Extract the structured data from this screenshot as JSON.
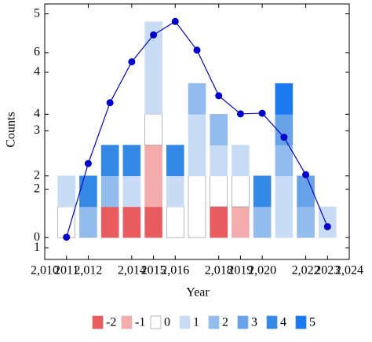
{
  "chart_data": {
    "type": "bar",
    "xlabel": "Year",
    "ylabel": "Counts",
    "x": [
      2011,
      2012,
      2013,
      2014,
      2015,
      2016,
      2017,
      2018,
      2019,
      2020,
      2021,
      2022,
      2023
    ],
    "xlim": [
      2010,
      2024
    ],
    "xticks": [
      {
        "value": 2010,
        "label": "2,010"
      },
      {
        "value": 2012,
        "label": "2,012"
      },
      {
        "value": 2014,
        "label": "2,014"
      },
      {
        "value": 2016,
        "label": "2,016"
      },
      {
        "value": 2018,
        "label": "2,018"
      },
      {
        "value": 2020,
        "label": "2,020"
      },
      {
        "value": 2022,
        "label": "2,022"
      },
      {
        "value": 2024,
        "label": "2,024"
      }
    ],
    "x2ticks": [
      2011,
      2015,
      2019,
      2023
    ],
    "ylim": [
      -0.71,
      7.58
    ],
    "yticks": [
      0,
      2,
      4,
      6
    ],
    "y2lim": [
      0.8,
      5.17
    ],
    "y2ticks": [
      1,
      2,
      3,
      4,
      5
    ],
    "stacked": true,
    "series": [
      {
        "name": "-2",
        "color": "#e85b5e",
        "values": [
          0,
          0,
          1,
          1,
          1,
          0,
          0,
          1,
          0,
          0,
          0,
          0,
          0
        ]
      },
      {
        "name": "-1",
        "color": "#f3abac",
        "values": [
          0,
          0,
          0,
          0,
          2,
          0,
          0,
          0,
          1,
          0,
          0,
          0,
          0
        ]
      },
      {
        "name": "0",
        "color": "#ffffff",
        "values": [
          1,
          0,
          0,
          0,
          1,
          1,
          2,
          1,
          1,
          0,
          0,
          0,
          0
        ]
      },
      {
        "name": "1",
        "color": "#c8dcf6",
        "values": [
          1,
          0,
          0,
          1,
          3,
          1,
          2,
          1,
          1,
          0,
          2,
          0,
          1
        ]
      },
      {
        "name": "2",
        "color": "#92bbee",
        "values": [
          0,
          1,
          1,
          0,
          0,
          0,
          1,
          1,
          0,
          1,
          1,
          1,
          0
        ]
      },
      {
        "name": "3",
        "color": "#68a3ea",
        "values": [
          0,
          0,
          0,
          0,
          0,
          0,
          0,
          0,
          0,
          0,
          1,
          1,
          0
        ]
      },
      {
        "name": "4",
        "color": "#3589e6",
        "values": [
          0,
          1,
          1,
          1,
          0,
          1,
          0,
          0,
          0,
          1,
          0,
          0,
          0
        ]
      },
      {
        "name": "5",
        "color": "#1c7af0",
        "values": [
          0,
          0,
          0,
          0,
          0,
          0,
          0,
          0,
          0,
          0,
          1,
          0,
          0
        ]
      }
    ],
    "line": {
      "type": "line",
      "axis": "y2",
      "color": "#0000cc",
      "values": [
        1.18,
        2.44,
        3.48,
        4.18,
        4.64,
        4.87,
        4.38,
        3.6,
        3.29,
        3.3,
        2.89,
        2.25,
        1.36
      ]
    }
  }
}
